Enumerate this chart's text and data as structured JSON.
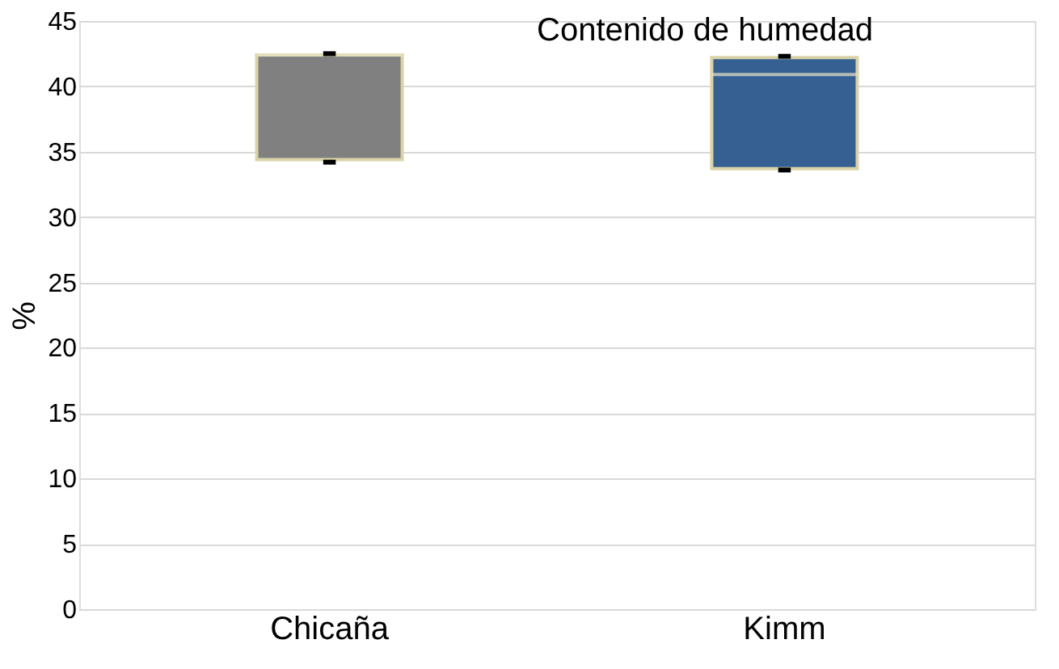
{
  "chart_data": {
    "type": "box",
    "title": "Contenido de humedad",
    "ylabel": "%",
    "categories": [
      "Chicaña",
      "Kimm"
    ],
    "boxes": [
      {
        "low": 34.2,
        "q1": 34.4,
        "median": 42.4,
        "q3": 42.4,
        "high": 42.5
      },
      {
        "low": 33.6,
        "q1": 33.7,
        "median": 40.9,
        "q3": 42.2,
        "high": 42.3
      }
    ],
    "colors": [
      "#808080",
      "#376092"
    ],
    "ylim": [
      0,
      45
    ],
    "yticks": [
      0,
      5,
      10,
      15,
      20,
      25,
      30,
      35,
      40,
      45
    ],
    "grid": "y",
    "legend": false
  }
}
